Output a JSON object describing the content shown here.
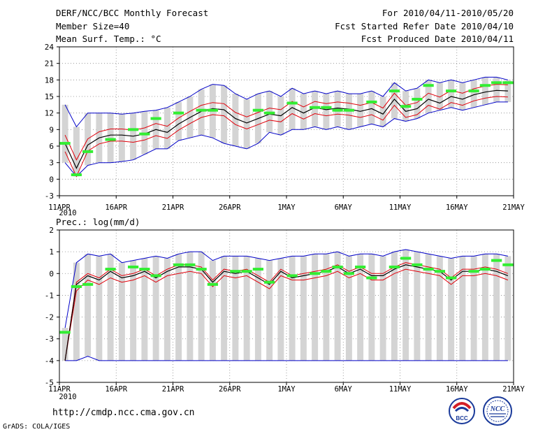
{
  "header": {
    "title": "DERF/NCC/BCC Monthly Forecast",
    "member_size": "Member Size=40",
    "variable": "Mean Surf. Temp.: °C",
    "period": "For 2010/04/11-2010/05/20",
    "start_date": "Fcst Started Refer Date 2010/04/10",
    "produced_date": "Fcst Produced Date 2010/04/11"
  },
  "footer": {
    "url": "http://cmdp.ncc.cma.gov.cn",
    "credit": "GrADS: COLA/IGES",
    "logo_left": "BCC",
    "logo_right": "NCC"
  },
  "colors": {
    "mean": "#000000",
    "spread": "#e0000a",
    "envelope": "#0000c8",
    "observed": "#33ee33",
    "box": "#d4d4d4"
  },
  "chart_data": [
    {
      "type": "line",
      "title": "Mean Surf. Temp.: °C",
      "xlabels": [
        "11APR",
        "16APR",
        "21APR",
        "26APR",
        "1MAY",
        "6MAY",
        "11MAY",
        "16MAY",
        "21MAY"
      ],
      "xyear": "2010",
      "yticks": [
        "24",
        "21",
        "18",
        "15",
        "12",
        "9",
        "6",
        "3",
        "0",
        "-3"
      ],
      "ylim": [
        -3,
        24
      ],
      "n_days": 40,
      "series": [
        {
          "name": "ensemble mean",
          "values": [
            6.5,
            2.0,
            6.2,
            7.5,
            8.0,
            8.0,
            7.8,
            8.2,
            9.0,
            8.5,
            10.0,
            11.2,
            12.3,
            12.8,
            12.6,
            11.0,
            10.2,
            11.0,
            11.8,
            11.5,
            13.0,
            12.0,
            13.0,
            12.6,
            12.9,
            12.7,
            12.3,
            12.8,
            11.8,
            14.5,
            12.3,
            12.8,
            14.5,
            13.8,
            15.0,
            14.5,
            15.3,
            15.8,
            16.1,
            16.0
          ]
        },
        {
          "name": "mean + 1sd",
          "values": [
            8.0,
            3.5,
            7.3,
            8.6,
            9.1,
            9.1,
            8.9,
            9.3,
            10.1,
            9.6,
            11.1,
            12.3,
            13.4,
            13.9,
            13.7,
            12.1,
            11.3,
            12.1,
            12.9,
            12.6,
            14.1,
            13.1,
            14.1,
            13.7,
            14.0,
            13.8,
            13.4,
            13.9,
            12.9,
            15.6,
            13.4,
            13.9,
            15.6,
            14.9,
            16.1,
            15.6,
            16.4,
            16.9,
            17.2,
            17.1
          ]
        },
        {
          "name": "mean - 1sd",
          "values": [
            5.0,
            0.5,
            5.1,
            6.4,
            6.9,
            6.9,
            6.7,
            7.1,
            7.9,
            7.4,
            8.9,
            10.1,
            11.2,
            11.7,
            11.5,
            9.9,
            9.1,
            9.9,
            10.7,
            10.4,
            11.9,
            10.9,
            11.9,
            11.5,
            11.8,
            11.6,
            11.2,
            11.7,
            10.7,
            13.4,
            11.2,
            11.7,
            13.4,
            12.7,
            13.9,
            13.4,
            14.2,
            14.7,
            15.0,
            14.9
          ]
        },
        {
          "name": "ensemble max",
          "values": [
            13.5,
            9.5,
            12.0,
            12.0,
            12.0,
            11.8,
            12.0,
            12.3,
            12.5,
            13.0,
            14.0,
            15.0,
            16.3,
            17.2,
            17.0,
            15.5,
            14.5,
            15.5,
            16.0,
            15.0,
            16.5,
            15.5,
            16.0,
            15.5,
            16.0,
            15.5,
            15.5,
            16.0,
            15.0,
            17.5,
            16.0,
            16.5,
            18.0,
            17.5,
            18.0,
            17.5,
            18.0,
            18.5,
            18.5,
            18.0
          ]
        },
        {
          "name": "ensemble min",
          "values": [
            3.0,
            0.5,
            2.5,
            3.0,
            3.0,
            3.2,
            3.5,
            4.5,
            5.5,
            5.5,
            7.0,
            7.5,
            8.0,
            7.5,
            6.5,
            6.0,
            5.5,
            6.5,
            8.5,
            8.0,
            9.0,
            9.0,
            9.5,
            9.0,
            9.5,
            9.0,
            9.5,
            10.0,
            9.5,
            11.0,
            10.5,
            11.0,
            12.0,
            12.5,
            13.0,
            12.5,
            13.0,
            13.5,
            14.0,
            14.0
          ]
        },
        {
          "name": "observed",
          "values": [
            6.5,
            0.8,
            5.0,
            null,
            7.2,
            null,
            9.0,
            8.2,
            11.0,
            null,
            12.0,
            null,
            12.5,
            12.5,
            null,
            null,
            null,
            12.5,
            12.0,
            null,
            13.8,
            null,
            13.0,
            13.0,
            12.5,
            12.5,
            null,
            14.0,
            null,
            16.0,
            13.2,
            14.5,
            17.0,
            null,
            16.0,
            null,
            16.0,
            17.0,
            17.5,
            17.5
          ]
        }
      ]
    },
    {
      "type": "line",
      "title": "Prec.: log(mm/d)",
      "xlabels": [
        "11APR",
        "16APR",
        "21APR",
        "26APR",
        "1MAY",
        "6MAY",
        "11MAY",
        "16MAY",
        "21MAY"
      ],
      "xyear": "2010",
      "yticks": [
        "2",
        "1",
        "0",
        "-1",
        "-2",
        "-3",
        "-4",
        "-5"
      ],
      "ylim": [
        -5,
        2
      ],
      "n_days": 40,
      "series": [
        {
          "name": "ensemble mean",
          "values": [
            -4.0,
            -0.5,
            -0.1,
            -0.3,
            0.1,
            -0.2,
            -0.1,
            0.1,
            -0.2,
            0.1,
            0.3,
            0.3,
            0.2,
            -0.4,
            0.1,
            0.0,
            0.1,
            -0.2,
            -0.5,
            0.1,
            -0.2,
            -0.1,
            0.0,
            0.1,
            0.3,
            0.0,
            0.2,
            -0.1,
            -0.1,
            0.2,
            0.4,
            0.3,
            0.2,
            0.1,
            -0.3,
            0.1,
            0.1,
            0.2,
            0.1,
            -0.1
          ]
        },
        {
          "name": "mean + 1sd",
          "values": [
            -4.0,
            -0.4,
            0.0,
            -0.2,
            0.2,
            -0.1,
            0.0,
            0.2,
            -0.1,
            0.2,
            0.4,
            0.4,
            0.3,
            -0.3,
            0.2,
            0.1,
            0.2,
            -0.1,
            -0.4,
            0.2,
            -0.1,
            0.0,
            0.1,
            0.2,
            0.4,
            0.1,
            0.3,
            0.0,
            0.0,
            0.3,
            0.5,
            0.4,
            0.3,
            0.2,
            -0.2,
            0.2,
            0.2,
            0.3,
            0.2,
            0.0
          ]
        },
        {
          "name": "mean - 1sd",
          "values": [
            -4.0,
            -0.8,
            -0.3,
            -0.5,
            -0.2,
            -0.4,
            -0.3,
            -0.1,
            -0.4,
            -0.1,
            0.0,
            0.1,
            0.0,
            -0.6,
            -0.1,
            -0.2,
            -0.1,
            -0.4,
            -0.7,
            -0.1,
            -0.3,
            -0.3,
            -0.2,
            -0.1,
            0.1,
            -0.2,
            0.0,
            -0.3,
            -0.3,
            0.0,
            0.2,
            0.1,
            0.0,
            -0.1,
            -0.5,
            -0.1,
            -0.1,
            0.0,
            -0.1,
            -0.3
          ]
        },
        {
          "name": "ensemble max",
          "values": [
            -2.5,
            0.5,
            0.9,
            0.8,
            0.9,
            0.5,
            0.6,
            0.7,
            0.8,
            0.7,
            0.9,
            1.0,
            1.0,
            0.6,
            0.8,
            0.8,
            0.8,
            0.7,
            0.6,
            0.7,
            0.8,
            0.8,
            0.9,
            0.9,
            1.0,
            0.8,
            0.9,
            0.9,
            0.8,
            1.0,
            1.1,
            1.0,
            0.9,
            0.8,
            0.7,
            0.8,
            0.8,
            0.9,
            0.9,
            0.8
          ]
        },
        {
          "name": "ensemble min",
          "values": [
            -4.0,
            -4.0,
            -3.8,
            -4.0,
            -4.0,
            -4.0,
            -4.0,
            -4.0,
            -4.0,
            -4.0,
            -4.0,
            -4.0,
            -4.0,
            -4.0,
            -4.0,
            -4.0,
            -4.0,
            -4.0,
            -4.0,
            -4.0,
            -4.0,
            -4.0,
            -4.0,
            -4.0,
            -4.0,
            -4.0,
            -4.0,
            -4.0,
            -4.0,
            -4.0,
            -4.0,
            -4.0,
            -4.0,
            -4.0,
            -4.0,
            -4.0,
            -4.0,
            -4.0,
            -4.0,
            -4.0
          ]
        },
        {
          "name": "observed",
          "values": [
            -2.7,
            -0.6,
            -0.5,
            null,
            0.2,
            null,
            0.3,
            0.2,
            -0.1,
            null,
            0.4,
            0.4,
            0.2,
            -0.5,
            null,
            0.1,
            0.1,
            0.2,
            -0.4,
            null,
            -0.1,
            null,
            0.0,
            0.1,
            0.3,
            0.0,
            0.3,
            -0.2,
            null,
            0.3,
            0.7,
            0.4,
            0.2,
            0.1,
            -0.2,
            null,
            0.1,
            0.2,
            0.6,
            0.4
          ]
        }
      ]
    }
  ]
}
